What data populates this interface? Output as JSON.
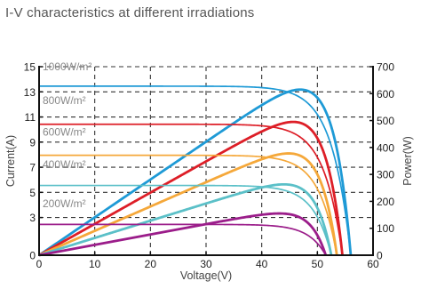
{
  "chart_data": {
    "type": "line",
    "title": "I-V characteristics at different irradiations",
    "xlabel": "Voltage(V)",
    "ylabel_left": "Current(A)",
    "ylabel_right": "Power(W)",
    "xlim": [
      0,
      60
    ],
    "ylim_left": [
      0,
      15
    ],
    "ylim_right": [
      0,
      700
    ],
    "xticks": [
      0,
      10,
      20,
      30,
      40,
      50,
      60
    ],
    "yticks_left": [
      0,
      3,
      5,
      7,
      9,
      11,
      13,
      15
    ],
    "yticks_right": [
      0,
      100,
      200,
      300,
      400,
      500,
      600,
      700
    ],
    "grid": true,
    "irradiance_labels": [
      {
        "text": "1000W/m²",
        "current": 15.0
      },
      {
        "text": "800W/m²",
        "current": 12.3
      },
      {
        "text": "600W/m²",
        "current": 9.8
      },
      {
        "text": "400W/m²",
        "current": 7.2
      },
      {
        "text": "200W/m²",
        "current": 4.1
      }
    ],
    "series": [
      {
        "irradiance": "1000W/m²",
        "color": "#1e9ad6",
        "isc": 13.45,
        "voc": 56.0,
        "vmp": 47.0,
        "imp": 12.8,
        "pmax": 615
      },
      {
        "irradiance": "800W/m²",
        "color": "#dd1e27",
        "isc": 10.42,
        "voc": 54.5,
        "vmp": 47.0,
        "imp": 9.9,
        "pmax": 495
      },
      {
        "irradiance": "600W/m²",
        "color": "#f5a83a",
        "isc": 7.95,
        "voc": 53.5,
        "vmp": 47.0,
        "imp": 7.6,
        "pmax": 378
      },
      {
        "irradiance": "400W/m²",
        "color": "#5bc0c8",
        "isc": 5.55,
        "voc": 52.5,
        "vmp": 46.0,
        "imp": 5.3,
        "pmax": 263
      },
      {
        "irradiance": "200W/m²",
        "color": "#9b1d8a",
        "isc": 2.45,
        "voc": 51.5,
        "vmp": 46.0,
        "imp": 2.35,
        "pmax": 155
      }
    ]
  }
}
